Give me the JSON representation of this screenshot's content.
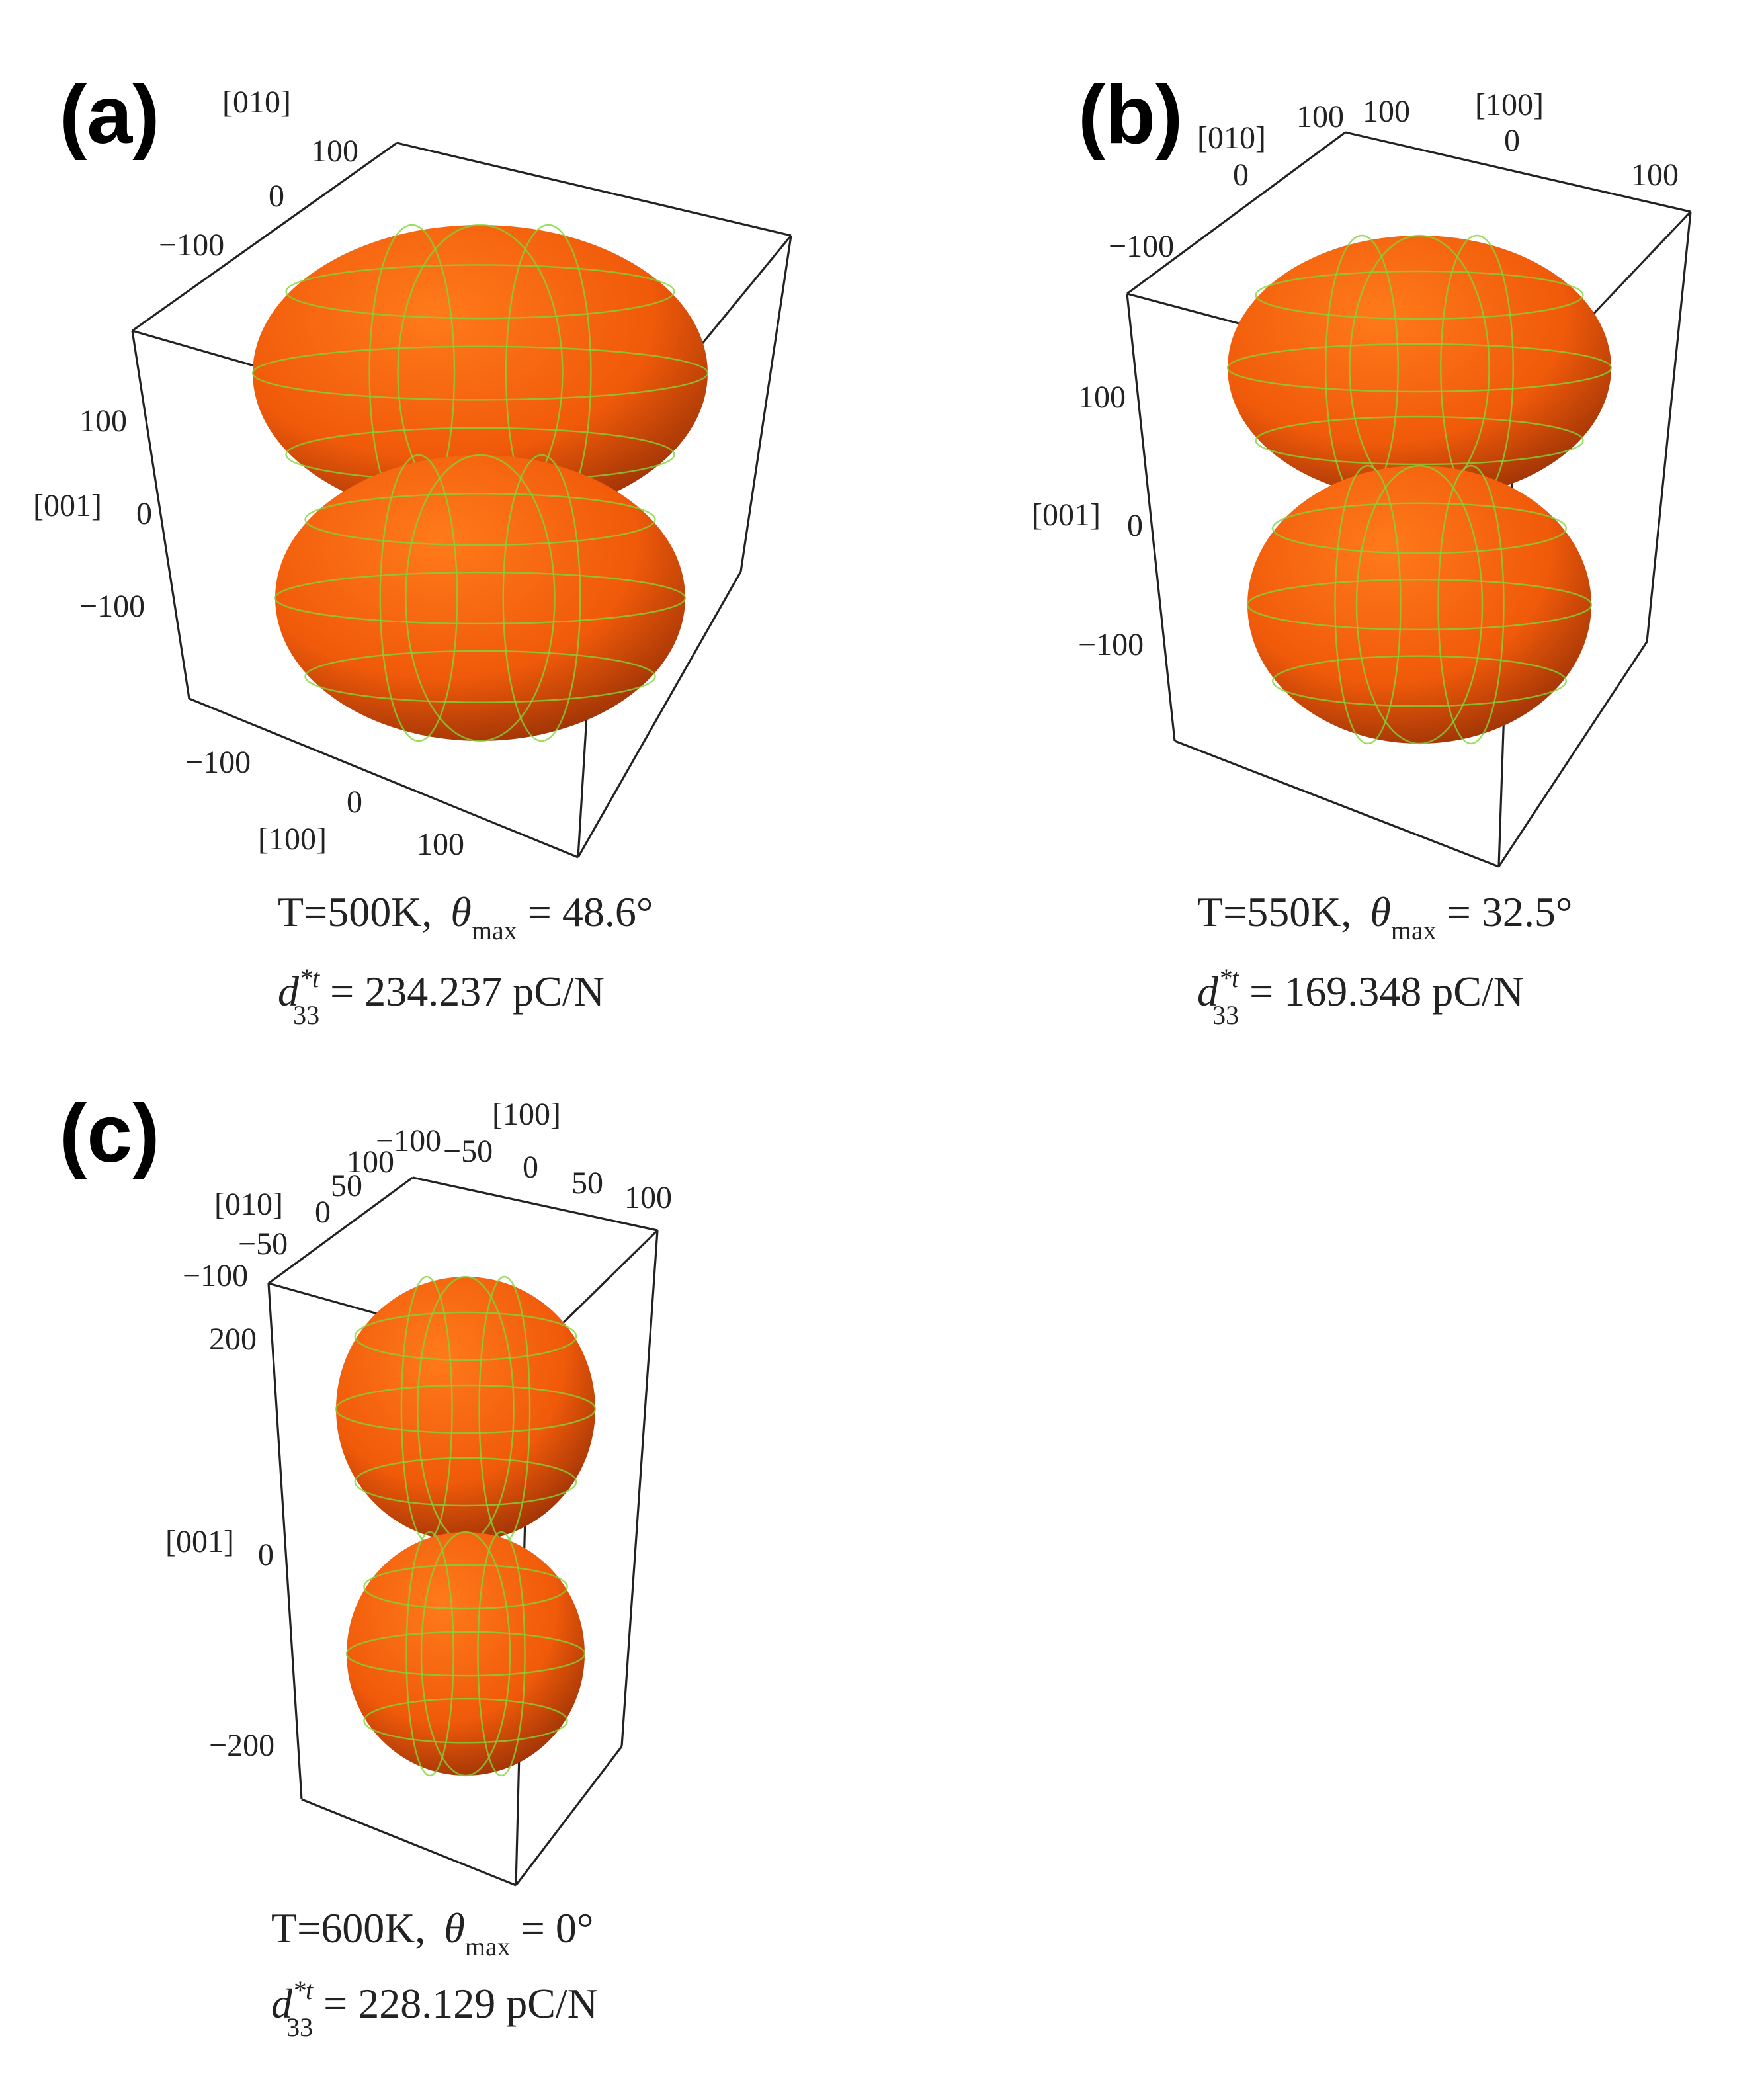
{
  "panels": [
    {
      "label": "(a)",
      "axis_titles": [
        "[010]",
        "[001]",
        "[100]"
      ],
      "tick_labels": [
        "100",
        "0",
        "−100",
        "100",
        "0",
        "−100",
        "−100",
        "0",
        "100"
      ],
      "caption": {
        "temperature": "T=500K,",
        "theta": "θ",
        "theta_sub": "max",
        "theta_value": "= 48.6°",
        "d": "d",
        "d_sup": "*t",
        "d_sub": "33",
        "d_value": "= 234.237 pC/N"
      }
    },
    {
      "label": "(b)",
      "axis_titles": [
        "[010]",
        "[100]",
        "[001]"
      ],
      "tick_labels": [
        "0",
        "−100",
        "100",
        "100",
        "0",
        "100",
        "100",
        "0",
        "−100"
      ],
      "caption": {
        "temperature": "T=550K,",
        "theta": "θ",
        "theta_sub": "max",
        "theta_value": "= 32.5°",
        "d": "d",
        "d_sup": "*t",
        "d_sub": "33",
        "d_value": "= 169.348 pC/N"
      }
    },
    {
      "label": "(c)",
      "axis_titles": [
        "[100]",
        "[010]",
        "[001]"
      ],
      "tick_labels": [
        "−100",
        "100",
        "−50",
        "0",
        "50",
        "100",
        "50",
        "0",
        "−50",
        "−100",
        "200",
        "0",
        "−200"
      ],
      "caption": {
        "temperature": "T=600K,",
        "theta": "θ",
        "theta_sub": "max",
        "theta_value": "= 0°",
        "d": "d",
        "d_sup": "*t",
        "d_sub": "33",
        "d_value": "= 228.129 pC/N"
      }
    }
  ]
}
